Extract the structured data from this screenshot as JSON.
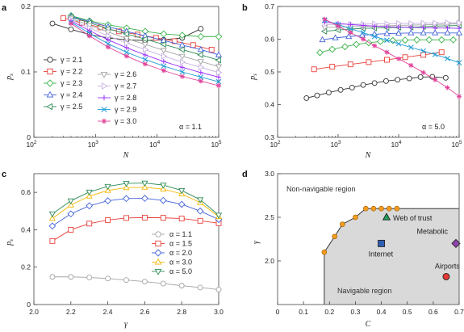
{
  "chart_data": [
    {
      "panel": "a",
      "type": "line",
      "xlabel": "N",
      "ylabel": "p_s",
      "xscale": "log",
      "xlim": [
        100,
        100000
      ],
      "ylim": [
        0,
        0.2
      ],
      "xticks": [
        {
          "v": 100,
          "base": "10",
          "exp": "2"
        },
        {
          "v": 1000,
          "base": "10",
          "exp": "3"
        },
        {
          "v": 10000,
          "base": "10",
          "exp": "4"
        },
        {
          "v": 100000,
          "base": "10",
          "exp": "5"
        }
      ],
      "yticks": [
        {
          "v": 0,
          "label": "0"
        },
        {
          "v": 0.1,
          "label": "0.1"
        },
        {
          "v": 0.2,
          "label": "0.2"
        }
      ],
      "annotation": "α = 1.1",
      "legend_position": "left, two columns",
      "series": [
        {
          "name": "γ = 2.1",
          "color": "#333333",
          "marker": "circle",
          "x": [
            200,
            400,
            800,
            1600,
            3200,
            6400,
            12800,
            25600,
            51200
          ],
          "y": [
            0.174,
            0.165,
            0.157,
            0.152,
            0.149,
            0.148,
            0.149,
            0.152,
            0.166
          ]
        },
        {
          "name": "γ = 2.2",
          "color": "#e8403a",
          "marker": "square",
          "x": [
            300,
            600,
            1200,
            2400,
            4800,
            9600,
            19200,
            38400,
            76800
          ],
          "y": [
            0.182,
            0.175,
            0.168,
            0.162,
            0.157,
            0.152,
            0.147,
            0.141,
            0.134
          ]
        },
        {
          "name": "γ = 2.3",
          "color": "#3cb44b",
          "marker": "diamond",
          "x": [
            400,
            800,
            1600,
            3200,
            6400,
            12800,
            25600,
            51200,
            102400
          ],
          "y": [
            0.186,
            0.178,
            0.172,
            0.167,
            0.162,
            0.158,
            0.156,
            0.154,
            0.154
          ]
        },
        {
          "name": "γ = 2.4",
          "color": "#4363d8",
          "marker": "triangle-up",
          "x": [
            400,
            800,
            1600,
            3200,
            6400,
            12800,
            25600,
            51200,
            102400
          ],
          "y": [
            0.185,
            0.177,
            0.169,
            0.162,
            0.155,
            0.148,
            0.141,
            0.134,
            0.126
          ]
        },
        {
          "name": "γ = 2.5",
          "color": "#2e8b57",
          "marker": "triangle-left",
          "x": [
            400,
            800,
            1600,
            3200,
            6400,
            12800,
            25600,
            51200,
            102400
          ],
          "y": [
            0.184,
            0.175,
            0.166,
            0.158,
            0.15,
            0.142,
            0.134,
            0.126,
            0.118
          ]
        },
        {
          "name": "γ = 2.6",
          "color": "#a5a5a5",
          "marker": "triangle-down",
          "x": [
            400,
            800,
            1600,
            3200,
            6400,
            12800,
            25600,
            51200,
            102400
          ],
          "y": [
            0.182,
            0.171,
            0.161,
            0.151,
            0.142,
            0.133,
            0.124,
            0.116,
            0.108
          ]
        },
        {
          "name": "γ = 2.7",
          "color": "#c6b2e0",
          "marker": "triangle-right",
          "x": [
            400,
            800,
            1600,
            3200,
            6400,
            12800,
            25600,
            51200,
            102400
          ],
          "y": [
            0.18,
            0.167,
            0.155,
            0.144,
            0.134,
            0.124,
            0.115,
            0.107,
            0.099
          ]
        },
        {
          "name": "γ = 2.8",
          "color": "#9b30ff",
          "marker": "plus",
          "x": [
            400,
            800,
            1600,
            3200,
            6400,
            12800,
            25600,
            51200,
            102400
          ],
          "y": [
            0.178,
            0.163,
            0.149,
            0.137,
            0.126,
            0.116,
            0.107,
            0.099,
            0.092
          ]
        },
        {
          "name": "γ = 2.9",
          "color": "#1f9bd6",
          "marker": "cross",
          "x": [
            400,
            800,
            1600,
            3200,
            6400,
            12800,
            25600,
            51200,
            102400
          ],
          "y": [
            0.176,
            0.159,
            0.143,
            0.13,
            0.119,
            0.109,
            0.1,
            0.092,
            0.085
          ]
        },
        {
          "name": "γ = 3.0",
          "color": "#e0459b",
          "marker": "star",
          "x": [
            400,
            800,
            1600,
            3200,
            6400,
            12800,
            25600,
            51200,
            102400
          ],
          "y": [
            0.174,
            0.155,
            0.138,
            0.124,
            0.112,
            0.102,
            0.093,
            0.086,
            0.079
          ]
        }
      ]
    },
    {
      "panel": "b",
      "type": "line",
      "xlabel": "N",
      "ylabel": "p_s",
      "xscale": "log",
      "xlim": [
        100,
        100000
      ],
      "ylim": [
        0.3,
        0.7
      ],
      "xticks": [
        {
          "v": 100,
          "base": "10",
          "exp": "2"
        },
        {
          "v": 1000,
          "base": "10",
          "exp": "3"
        },
        {
          "v": 10000,
          "base": "10",
          "exp": "4"
        },
        {
          "v": 100000,
          "base": "10",
          "exp": "5"
        }
      ],
      "yticks": [
        {
          "v": 0.3,
          "label": "0.3"
        },
        {
          "v": 0.4,
          "label": "0.4"
        },
        {
          "v": 0.5,
          "label": "0.5"
        },
        {
          "v": 0.6,
          "label": "0.6"
        },
        {
          "v": 0.7,
          "label": "0.7"
        }
      ],
      "annotation": "α = 5.0",
      "series": [
        {
          "color": "#333333",
          "marker": "circle",
          "x": [
            300,
            450,
            700,
            1100,
            1700,
            2600,
            4000,
            6200,
            9600,
            15000,
            23000,
            36000,
            60000
          ],
          "y": [
            0.42,
            0.428,
            0.437,
            0.445,
            0.452,
            0.46,
            0.466,
            0.472,
            0.476,
            0.48,
            0.484,
            0.485,
            0.482
          ]
        },
        {
          "color": "#e8403a",
          "marker": "square",
          "x": [
            400,
            800,
            1600,
            3200,
            6400,
            12800,
            25600,
            51200
          ],
          "y": [
            0.508,
            0.516,
            0.523,
            0.53,
            0.537,
            0.545,
            0.552,
            0.56
          ]
        },
        {
          "color": "#3cb44b",
          "marker": "diamond",
          "x": [
            500,
            800,
            1300,
            2000,
            3200,
            5000,
            8000,
            12800,
            20000,
            32000,
            51200,
            80000
          ],
          "y": [
            0.559,
            0.569,
            0.577,
            0.584,
            0.589,
            0.593,
            0.596,
            0.597,
            0.598,
            0.598,
            0.598,
            0.598
          ]
        },
        {
          "color": "#4363d8",
          "marker": "triangle-up",
          "x": [
            550,
            900,
            1500,
            2500,
            4000,
            6400,
            10000,
            16000,
            25600,
            40000,
            64000,
            100000
          ],
          "y": [
            0.598,
            0.604,
            0.608,
            0.612,
            0.615,
            0.617,
            0.618,
            0.619,
            0.619,
            0.619,
            0.619,
            0.619
          ]
        },
        {
          "color": "#2e8b57",
          "marker": "triangle-left",
          "x": [
            600,
            1000,
            1600,
            2600,
            4000,
            6400,
            10000,
            16000,
            25600,
            40000,
            64000,
            100000
          ],
          "y": [
            0.624,
            0.628,
            0.631,
            0.633,
            0.634,
            0.635,
            0.636,
            0.637,
            0.638,
            0.64,
            0.641,
            0.642
          ]
        },
        {
          "color": "#a5a5a5",
          "marker": "triangle-down",
          "x": [
            600,
            1000,
            1600,
            2600,
            4000,
            6400,
            10000,
            16000,
            25600,
            40000,
            64000,
            100000
          ],
          "y": [
            0.636,
            0.637,
            0.638,
            0.639,
            0.64,
            0.641,
            0.642,
            0.643,
            0.644,
            0.645,
            0.646,
            0.647
          ]
        },
        {
          "color": "#c6b2e0",
          "marker": "triangle-right",
          "x": [
            600,
            1000,
            1600,
            2600,
            4000,
            6400,
            10000,
            16000,
            25600,
            40000,
            64000,
            100000
          ],
          "y": [
            0.645,
            0.645,
            0.646,
            0.646,
            0.647,
            0.647,
            0.648,
            0.648,
            0.649,
            0.649,
            0.65,
            0.65
          ]
        },
        {
          "color": "#9b30ff",
          "marker": "plus",
          "x": [
            600,
            1000,
            1600,
            2600,
            4000,
            6400,
            10000,
            16000,
            25600,
            40000,
            64000,
            100000
          ],
          "y": [
            0.652,
            0.648,
            0.645,
            0.642,
            0.64,
            0.638,
            0.637,
            0.636,
            0.635,
            0.634,
            0.634,
            0.633
          ]
        },
        {
          "color": "#1f9bd6",
          "marker": "cross",
          "x": [
            600,
            1000,
            1600,
            2600,
            4000,
            6400,
            10000,
            16000,
            25600,
            40000,
            64000,
            100000
          ],
          "y": [
            0.658,
            0.645,
            0.632,
            0.62,
            0.608,
            0.597,
            0.586,
            0.575,
            0.564,
            0.553,
            0.541,
            0.528
          ]
        },
        {
          "color": "#e0459b",
          "marker": "star",
          "x": [
            600,
            1000,
            1600,
            2600,
            4000,
            6400,
            10000,
            16000,
            25600,
            40000,
            64000,
            100000
          ],
          "y": [
            0.661,
            0.64,
            0.62,
            0.6,
            0.58,
            0.56,
            0.54,
            0.52,
            0.498,
            0.476,
            0.452,
            0.425
          ]
        }
      ]
    },
    {
      "panel": "c",
      "type": "line",
      "xlabel": "γ",
      "ylabel": "p_s",
      "xscale": "linear",
      "xlim": [
        2.0,
        3.0
      ],
      "ylim": [
        0,
        0.7
      ],
      "xticks": [
        {
          "v": 2.0,
          "label": "2.0"
        },
        {
          "v": 2.2,
          "label": "2.2"
        },
        {
          "v": 2.4,
          "label": "2.4"
        },
        {
          "v": 2.6,
          "label": "2.6"
        },
        {
          "v": 2.8,
          "label": "2.8"
        },
        {
          "v": 3.0,
          "label": "3.0"
        }
      ],
      "yticks": [
        {
          "v": 0,
          "label": "0"
        },
        {
          "v": 0.2,
          "label": "0.2"
        },
        {
          "v": 0.4,
          "label": "0.4"
        },
        {
          "v": 0.6,
          "label": "0.6"
        }
      ],
      "legend_position": "right",
      "series": [
        {
          "name": "α = 1.1",
          "color": "#a5a5a5",
          "marker": "circle",
          "x": [
            2.1,
            2.2,
            2.3,
            2.4,
            2.5,
            2.6,
            2.7,
            2.8,
            2.9,
            3.0
          ],
          "y": [
            0.148,
            0.148,
            0.145,
            0.139,
            0.131,
            0.123,
            0.112,
            0.101,
            0.091,
            0.08
          ]
        },
        {
          "name": "α = 1.5",
          "color": "#e8403a",
          "marker": "square",
          "x": [
            2.1,
            2.2,
            2.3,
            2.4,
            2.5,
            2.6,
            2.7,
            2.8,
            2.9,
            3.0
          ],
          "y": [
            0.34,
            0.4,
            0.433,
            0.452,
            0.463,
            0.465,
            0.464,
            0.46,
            0.448,
            0.435
          ]
        },
        {
          "name": "α = 2.0",
          "color": "#4363d8",
          "marker": "diamond",
          "x": [
            2.1,
            2.2,
            2.3,
            2.4,
            2.5,
            2.6,
            2.7,
            2.8,
            2.9,
            3.0
          ],
          "y": [
            0.42,
            0.485,
            0.528,
            0.555,
            0.567,
            0.568,
            0.557,
            0.536,
            0.5,
            0.455
          ]
        },
        {
          "name": "α = 3.0",
          "color": "#f2b705",
          "marker": "triangle-up",
          "x": [
            2.1,
            2.2,
            2.3,
            2.4,
            2.5,
            2.6,
            2.7,
            2.8,
            2.9,
            3.0
          ],
          "y": [
            0.46,
            0.532,
            0.58,
            0.61,
            0.625,
            0.627,
            0.617,
            0.592,
            0.545,
            0.47
          ]
        },
        {
          "name": "α = 5.0",
          "color": "#2e8b57",
          "marker": "triangle-down",
          "x": [
            2.1,
            2.2,
            2.3,
            2.4,
            2.5,
            2.6,
            2.7,
            2.8,
            2.9,
            3.0
          ],
          "y": [
            0.485,
            0.555,
            0.602,
            0.632,
            0.648,
            0.65,
            0.639,
            0.61,
            0.561,
            0.478
          ]
        }
      ]
    },
    {
      "panel": "d",
      "type": "area",
      "xlabel": "C",
      "ylabel": "γ",
      "xlim": [
        0,
        0.7
      ],
      "ylim": [
        1.5,
        3.0
      ],
      "xticks": [
        {
          "v": 0,
          "label": "0"
        },
        {
          "v": 0.1,
          "label": "0.1"
        },
        {
          "v": 0.2,
          "label": "0.2"
        },
        {
          "v": 0.3,
          "label": "0.3"
        },
        {
          "v": 0.4,
          "label": "0.4"
        },
        {
          "v": 0.5,
          "label": "0.5"
        },
        {
          "v": 0.6,
          "label": "0.6"
        },
        {
          "v": 0.7,
          "label": "0.7"
        }
      ],
      "yticks": [
        {
          "v": 2.0,
          "label": "2.0"
        },
        {
          "v": 2.5,
          "label": "2.5"
        },
        {
          "v": 3.0,
          "label": "3.0"
        }
      ],
      "boundary": {
        "color": "#f39c1f",
        "x": [
          0.18,
          0.22,
          0.25,
          0.3,
          0.34,
          0.37,
          0.4,
          0.43,
          0.46
        ],
        "y": [
          2.1,
          2.28,
          2.42,
          2.5,
          2.6,
          2.6,
          2.6,
          2.6,
          2.6
        ]
      },
      "region_labels": {
        "non_navigable": "Non-navigable region",
        "navigable": "Navigable region"
      },
      "networks": [
        {
          "name": "Web of trust",
          "x": 0.42,
          "y": 2.5,
          "marker": "triangle-up",
          "color": "#1f9e5a"
        },
        {
          "name": "Internet",
          "x": 0.4,
          "y": 2.2,
          "marker": "square",
          "color": "#2f5fb3"
        },
        {
          "name": "Metabolic",
          "x": 0.69,
          "y": 2.2,
          "marker": "diamond",
          "color": "#8e44ad"
        },
        {
          "name": "Airports",
          "x": 0.65,
          "y": 1.82,
          "marker": "circle",
          "color": "#e53935"
        }
      ]
    }
  ],
  "panel_labels": [
    "a",
    "b",
    "c",
    "d"
  ]
}
